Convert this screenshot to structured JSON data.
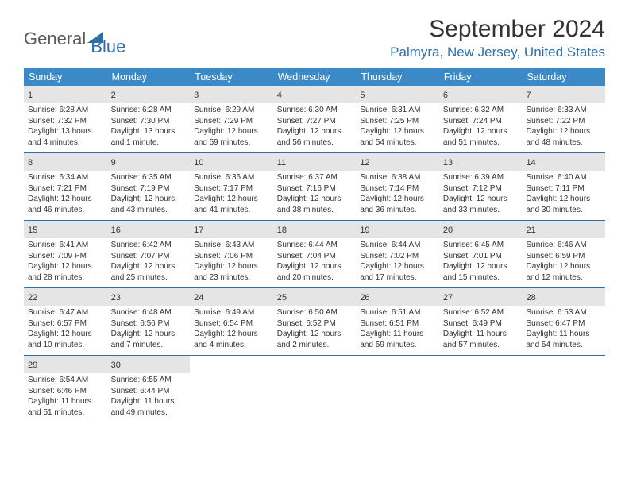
{
  "logo": {
    "text1": "General",
    "text2": "Blue"
  },
  "title": "September 2024",
  "location": "Palmyra, New Jersey, United States",
  "colors": {
    "header_bg": "#3b89c7",
    "accent": "#2f6fa8",
    "daynum_bg": "#e5e5e5",
    "text": "#333333",
    "bg": "#ffffff"
  },
  "weekdays": [
    "Sunday",
    "Monday",
    "Tuesday",
    "Wednesday",
    "Thursday",
    "Friday",
    "Saturday"
  ],
  "weeks": [
    [
      {
        "n": "1",
        "sr": "6:28 AM",
        "ss": "7:32 PM",
        "dl": "13 hours and 4 minutes."
      },
      {
        "n": "2",
        "sr": "6:28 AM",
        "ss": "7:30 PM",
        "dl": "13 hours and 1 minute."
      },
      {
        "n": "3",
        "sr": "6:29 AM",
        "ss": "7:29 PM",
        "dl": "12 hours and 59 minutes."
      },
      {
        "n": "4",
        "sr": "6:30 AM",
        "ss": "7:27 PM",
        "dl": "12 hours and 56 minutes."
      },
      {
        "n": "5",
        "sr": "6:31 AM",
        "ss": "7:25 PM",
        "dl": "12 hours and 54 minutes."
      },
      {
        "n": "6",
        "sr": "6:32 AM",
        "ss": "7:24 PM",
        "dl": "12 hours and 51 minutes."
      },
      {
        "n": "7",
        "sr": "6:33 AM",
        "ss": "7:22 PM",
        "dl": "12 hours and 48 minutes."
      }
    ],
    [
      {
        "n": "8",
        "sr": "6:34 AM",
        "ss": "7:21 PM",
        "dl": "12 hours and 46 minutes."
      },
      {
        "n": "9",
        "sr": "6:35 AM",
        "ss": "7:19 PM",
        "dl": "12 hours and 43 minutes."
      },
      {
        "n": "10",
        "sr": "6:36 AM",
        "ss": "7:17 PM",
        "dl": "12 hours and 41 minutes."
      },
      {
        "n": "11",
        "sr": "6:37 AM",
        "ss": "7:16 PM",
        "dl": "12 hours and 38 minutes."
      },
      {
        "n": "12",
        "sr": "6:38 AM",
        "ss": "7:14 PM",
        "dl": "12 hours and 36 minutes."
      },
      {
        "n": "13",
        "sr": "6:39 AM",
        "ss": "7:12 PM",
        "dl": "12 hours and 33 minutes."
      },
      {
        "n": "14",
        "sr": "6:40 AM",
        "ss": "7:11 PM",
        "dl": "12 hours and 30 minutes."
      }
    ],
    [
      {
        "n": "15",
        "sr": "6:41 AM",
        "ss": "7:09 PM",
        "dl": "12 hours and 28 minutes."
      },
      {
        "n": "16",
        "sr": "6:42 AM",
        "ss": "7:07 PM",
        "dl": "12 hours and 25 minutes."
      },
      {
        "n": "17",
        "sr": "6:43 AM",
        "ss": "7:06 PM",
        "dl": "12 hours and 23 minutes."
      },
      {
        "n": "18",
        "sr": "6:44 AM",
        "ss": "7:04 PM",
        "dl": "12 hours and 20 minutes."
      },
      {
        "n": "19",
        "sr": "6:44 AM",
        "ss": "7:02 PM",
        "dl": "12 hours and 17 minutes."
      },
      {
        "n": "20",
        "sr": "6:45 AM",
        "ss": "7:01 PM",
        "dl": "12 hours and 15 minutes."
      },
      {
        "n": "21",
        "sr": "6:46 AM",
        "ss": "6:59 PM",
        "dl": "12 hours and 12 minutes."
      }
    ],
    [
      {
        "n": "22",
        "sr": "6:47 AM",
        "ss": "6:57 PM",
        "dl": "12 hours and 10 minutes."
      },
      {
        "n": "23",
        "sr": "6:48 AM",
        "ss": "6:56 PM",
        "dl": "12 hours and 7 minutes."
      },
      {
        "n": "24",
        "sr": "6:49 AM",
        "ss": "6:54 PM",
        "dl": "12 hours and 4 minutes."
      },
      {
        "n": "25",
        "sr": "6:50 AM",
        "ss": "6:52 PM",
        "dl": "12 hours and 2 minutes."
      },
      {
        "n": "26",
        "sr": "6:51 AM",
        "ss": "6:51 PM",
        "dl": "11 hours and 59 minutes."
      },
      {
        "n": "27",
        "sr": "6:52 AM",
        "ss": "6:49 PM",
        "dl": "11 hours and 57 minutes."
      },
      {
        "n": "28",
        "sr": "6:53 AM",
        "ss": "6:47 PM",
        "dl": "11 hours and 54 minutes."
      }
    ],
    [
      {
        "n": "29",
        "sr": "6:54 AM",
        "ss": "6:46 PM",
        "dl": "11 hours and 51 minutes."
      },
      {
        "n": "30",
        "sr": "6:55 AM",
        "ss": "6:44 PM",
        "dl": "11 hours and 49 minutes."
      },
      {
        "n": "",
        "sr": "",
        "ss": "",
        "dl": ""
      },
      {
        "n": "",
        "sr": "",
        "ss": "",
        "dl": ""
      },
      {
        "n": "",
        "sr": "",
        "ss": "",
        "dl": ""
      },
      {
        "n": "",
        "sr": "",
        "ss": "",
        "dl": ""
      },
      {
        "n": "",
        "sr": "",
        "ss": "",
        "dl": ""
      }
    ]
  ],
  "labels": {
    "sunrise": "Sunrise:",
    "sunset": "Sunset:",
    "daylight": "Daylight:"
  }
}
